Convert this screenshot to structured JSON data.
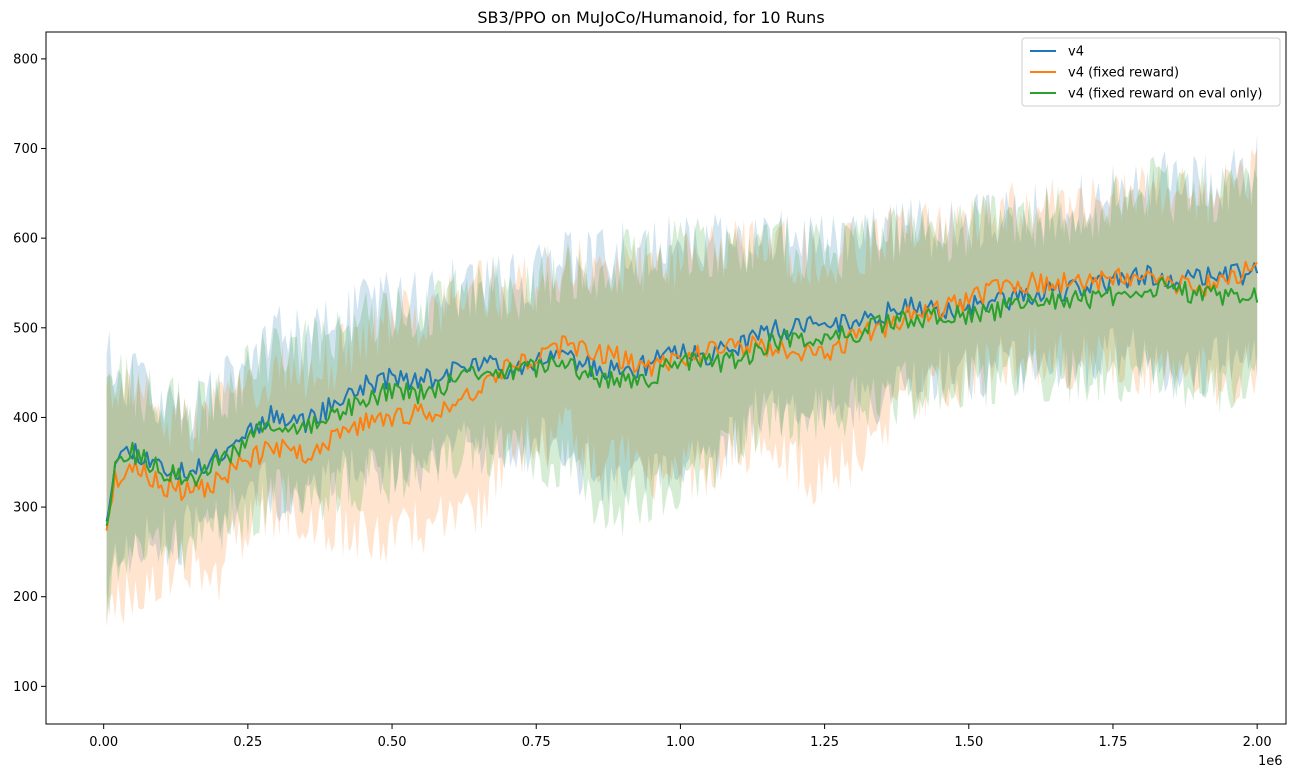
{
  "chart_data": {
    "type": "line",
    "title": "SB3/PPO on MuJoCo/Humanoid, for 10 Runs",
    "xlabel": "",
    "ylabel": "",
    "x_offset_label": "1e6",
    "xlim": [
      -0.1,
      2.05
    ],
    "ylim": [
      58,
      830
    ],
    "x_ticks": [
      0.0,
      0.25,
      0.5,
      0.75,
      1.0,
      1.25,
      1.5,
      1.75,
      2.0
    ],
    "x_tick_labels": [
      "0.00",
      "0.25",
      "0.50",
      "0.75",
      "1.00",
      "1.25",
      "1.50",
      "1.75",
      "2.00"
    ],
    "y_ticks": [
      100,
      200,
      300,
      400,
      500,
      600,
      700,
      800
    ],
    "y_tick_labels": [
      "100",
      "200",
      "300",
      "400",
      "500",
      "600",
      "700",
      "800"
    ],
    "grid": false,
    "legend_position": "top-right",
    "x_range": [
      0.005,
      2.0
    ],
    "points_per_series": 400,
    "series": [
      {
        "name": "v4",
        "color": "#1f77b4",
        "anchors_x": [
          0.005,
          0.02,
          0.05,
          0.1,
          0.15,
          0.2,
          0.25,
          0.3,
          0.35,
          0.4,
          0.45,
          0.5,
          0.55,
          0.6,
          0.65,
          0.7,
          0.75,
          0.8,
          0.85,
          0.9,
          0.95,
          1.0,
          1.05,
          1.1,
          1.15,
          1.2,
          1.25,
          1.3,
          1.35,
          1.4,
          1.45,
          1.5,
          1.55,
          1.6,
          1.65,
          1.7,
          1.75,
          1.8,
          1.85,
          1.9,
          1.95,
          2.0
        ],
        "mean_anchors": [
          290,
          355,
          365,
          345,
          335,
          360,
          385,
          405,
          395,
          415,
          435,
          445,
          440,
          450,
          460,
          455,
          465,
          470,
          455,
          450,
          460,
          475,
          470,
          480,
          495,
          500,
          505,
          505,
          515,
          525,
          520,
          525,
          530,
          535,
          540,
          545,
          550,
          560,
          555,
          555,
          560,
          560
        ],
        "band_lower_anchors": [
          185,
          240,
          255,
          265,
          270,
          285,
          310,
          320,
          315,
          325,
          340,
          340,
          345,
          355,
          370,
          365,
          370,
          360,
          330,
          310,
          330,
          335,
          345,
          385,
          410,
          400,
          410,
          420,
          430,
          440,
          445,
          450,
          455,
          455,
          460,
          460,
          465,
          470,
          455,
          455,
          460,
          465
        ],
        "band_upper_anchors": [
          480,
          455,
          440,
          425,
          410,
          430,
          460,
          490,
          485,
          500,
          520,
          530,
          530,
          545,
          550,
          545,
          560,
          575,
          575,
          585,
          585,
          600,
          595,
          590,
          595,
          600,
          600,
          600,
          605,
          610,
          610,
          615,
          620,
          625,
          630,
          640,
          650,
          670,
          660,
          660,
          665,
          690
        ],
        "noise_amplitude": 12,
        "seed": 11
      },
      {
        "name": "v4 (fixed reward)",
        "color": "#ff7f0e",
        "anchors_x": [
          0.005,
          0.02,
          0.05,
          0.1,
          0.15,
          0.2,
          0.25,
          0.3,
          0.35,
          0.4,
          0.45,
          0.5,
          0.55,
          0.6,
          0.65,
          0.7,
          0.75,
          0.8,
          0.85,
          0.9,
          0.95,
          1.0,
          1.05,
          1.1,
          1.15,
          1.2,
          1.25,
          1.3,
          1.35,
          1.4,
          1.45,
          1.5,
          1.55,
          1.6,
          1.65,
          1.7,
          1.75,
          1.8,
          1.85,
          1.9,
          1.95,
          2.0
        ],
        "mean_anchors": [
          280,
          330,
          345,
          325,
          315,
          330,
          355,
          365,
          360,
          375,
          395,
          400,
          405,
          410,
          435,
          460,
          465,
          480,
          475,
          465,
          455,
          465,
          475,
          480,
          480,
          470,
          470,
          490,
          500,
          515,
          520,
          530,
          545,
          550,
          550,
          550,
          555,
          560,
          550,
          545,
          555,
          570
        ],
        "band_lower_anchors": [
          175,
          195,
          210,
          230,
          235,
          230,
          285,
          300,
          295,
          280,
          270,
          270,
          280,
          290,
          300,
          360,
          370,
          380,
          360,
          350,
          330,
          335,
          350,
          370,
          375,
          340,
          330,
          360,
          380,
          420,
          430,
          450,
          460,
          470,
          465,
          455,
          460,
          455,
          445,
          450,
          445,
          455
        ],
        "band_upper_anchors": [
          430,
          430,
          425,
          405,
          390,
          415,
          440,
          450,
          450,
          465,
          495,
          510,
          515,
          530,
          545,
          545,
          555,
          570,
          565,
          570,
          565,
          575,
          585,
          585,
          585,
          585,
          580,
          590,
          605,
          610,
          610,
          615,
          625,
          630,
          635,
          640,
          645,
          655,
          650,
          645,
          655,
          670
        ],
        "noise_amplitude": 12,
        "seed": 23
      },
      {
        "name": "v4 (fixed reward on eval only)",
        "color": "#2ca02c",
        "anchors_x": [
          0.005,
          0.02,
          0.05,
          0.1,
          0.15,
          0.2,
          0.25,
          0.3,
          0.35,
          0.4,
          0.45,
          0.5,
          0.55,
          0.6,
          0.65,
          0.7,
          0.75,
          0.8,
          0.85,
          0.9,
          0.95,
          1.0,
          1.05,
          1.1,
          1.15,
          1.2,
          1.25,
          1.3,
          1.35,
          1.4,
          1.45,
          1.5,
          1.55,
          1.6,
          1.65,
          1.7,
          1.75,
          1.8,
          1.85,
          1.9,
          1.95,
          2.0
        ],
        "mean_anchors": [
          285,
          345,
          360,
          340,
          330,
          350,
          375,
          395,
          385,
          405,
          420,
          430,
          425,
          440,
          450,
          450,
          455,
          460,
          445,
          440,
          445,
          465,
          460,
          465,
          480,
          490,
          490,
          495,
          505,
          510,
          510,
          515,
          520,
          525,
          530,
          530,
          535,
          545,
          545,
          535,
          535,
          540
        ],
        "band_lower_anchors": [
          195,
          245,
          250,
          255,
          260,
          275,
          300,
          310,
          305,
          320,
          330,
          335,
          340,
          350,
          360,
          355,
          360,
          350,
          315,
          300,
          320,
          330,
          335,
          375,
          400,
          390,
          405,
          410,
          420,
          430,
          435,
          440,
          445,
          445,
          450,
          450,
          450,
          455,
          445,
          440,
          440,
          445
        ],
        "band_upper_anchors": [
          470,
          450,
          435,
          420,
          405,
          420,
          450,
          480,
          475,
          490,
          505,
          515,
          520,
          530,
          540,
          540,
          550,
          565,
          565,
          575,
          575,
          590,
          585,
          580,
          590,
          590,
          590,
          590,
          600,
          605,
          605,
          610,
          615,
          620,
          625,
          630,
          640,
          660,
          650,
          650,
          655,
          670
        ],
        "noise_amplitude": 12,
        "seed": 37
      }
    ]
  }
}
